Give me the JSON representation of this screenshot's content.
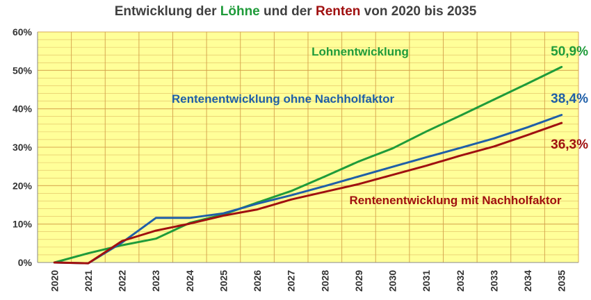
{
  "title": {
    "part1": "Entwicklung der ",
    "part2": "Löhne",
    "part3": " und der ",
    "part4": "Renten",
    "part5": " von 2020 bis 2035"
  },
  "colors": {
    "title_text": "#404040",
    "loehne": "#1f9b3a",
    "renten": "#a01010",
    "plot_bg": "#ffff99",
    "grid": "#d4a04a",
    "axis": "#888888"
  },
  "chart_data": {
    "type": "line",
    "x": [
      "2020",
      "2021",
      "2022",
      "2023",
      "2024",
      "2025",
      "2026",
      "2027",
      "2028",
      "2029",
      "2030",
      "2031",
      "2032",
      "2033",
      "2034",
      "2035"
    ],
    "ylim": [
      0,
      60
    ],
    "yticks": [
      "0%",
      "10%",
      "20%",
      "30%",
      "40%",
      "50%",
      "60%"
    ],
    "grid": true,
    "series": [
      {
        "name": "Lohnentwicklung",
        "color": "#1f9b3a",
        "values": [
          0,
          2.4,
          4.5,
          6.2,
          10.3,
          12.5,
          15.6,
          18.6,
          22.4,
          26.3,
          29.7,
          34.1,
          38.2,
          42.4,
          46.6,
          50.9
        ],
        "end_label": "50,9%"
      },
      {
        "name": "Rentenentwicklung ohne Nachholfaktor",
        "color": "#1f5fa8",
        "values": [
          0,
          -0.2,
          5.2,
          11.6,
          11.6,
          12.8,
          15.3,
          17.5,
          19.9,
          22.4,
          24.9,
          27.4,
          29.8,
          32.3,
          35.2,
          38.4
        ],
        "end_label": "38,4%"
      },
      {
        "name": "Rentenentwicklung mit Nachholfaktor",
        "color": "#a01010",
        "values": [
          0,
          -0.2,
          5.6,
          8.3,
          10.1,
          12.2,
          13.8,
          16.4,
          18.4,
          20.4,
          22.8,
          25.2,
          27.8,
          30.2,
          33.2,
          36.3
        ],
        "end_label": "36,3%"
      }
    ]
  }
}
